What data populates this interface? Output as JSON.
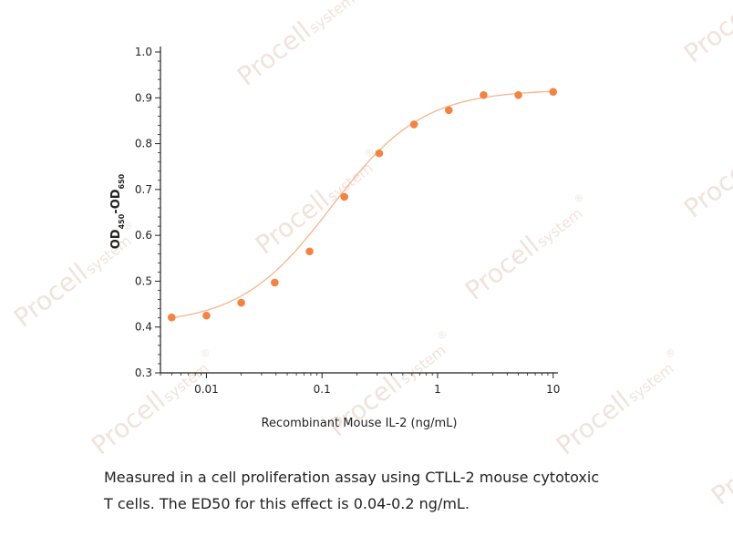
{
  "watermark": {
    "brand": "Procell",
    "suffix": "system",
    "mark": "®",
    "color": "#f0e3dc"
  },
  "chart_data": {
    "type": "scatter",
    "xscale": "log",
    "xlim": [
      0.004,
      11
    ],
    "ylim": [
      0.3,
      1.0
    ],
    "xlabel": "Recombinant Mouse IL-2 (ng/mL)",
    "ylabel": {
      "main": "OD",
      "sub1": "450",
      "sep": "-OD",
      "sub2": "650"
    },
    "xticks": [
      {
        "value": 0.01,
        "label": "0.01"
      },
      {
        "value": 0.1,
        "label": "0.1"
      },
      {
        "value": 1,
        "label": "1"
      },
      {
        "value": 10,
        "label": "10"
      }
    ],
    "yticks": [
      {
        "value": 0.3,
        "label": "0.3"
      },
      {
        "value": 0.4,
        "label": "0.4"
      },
      {
        "value": 0.5,
        "label": "0.5"
      },
      {
        "value": 0.6,
        "label": "0.6"
      },
      {
        "value": 0.7,
        "label": "0.7"
      },
      {
        "value": 0.8,
        "label": "0.8"
      },
      {
        "value": 0.9,
        "label": "0.9"
      },
      {
        "value": 1.0,
        "label": "1.0"
      }
    ],
    "points": [
      {
        "x": 0.005,
        "y": 0.421
      },
      {
        "x": 0.01,
        "y": 0.425
      },
      {
        "x": 0.02,
        "y": 0.453
      },
      {
        "x": 0.039,
        "y": 0.497
      },
      {
        "x": 0.078,
        "y": 0.565
      },
      {
        "x": 0.156,
        "y": 0.684
      },
      {
        "x": 0.3125,
        "y": 0.779
      },
      {
        "x": 0.625,
        "y": 0.842
      },
      {
        "x": 1.25,
        "y": 0.873
      },
      {
        "x": 2.5,
        "y": 0.906
      },
      {
        "x": 5,
        "y": 0.906
      },
      {
        "x": 10,
        "y": 0.913
      }
    ],
    "fit": {
      "bottom": 0.405,
      "top": 0.918,
      "ec50": 0.12,
      "hill": 1.1
    },
    "point_color": "#f28443",
    "line_color": "#f6b48d"
  },
  "caption": {
    "line1": "Measured in a cell proliferation assay using CTLL-2 mouse cytotoxic",
    "line2": "T cells. The ED50 for this effect is 0.04-0.2 ng/mL."
  }
}
